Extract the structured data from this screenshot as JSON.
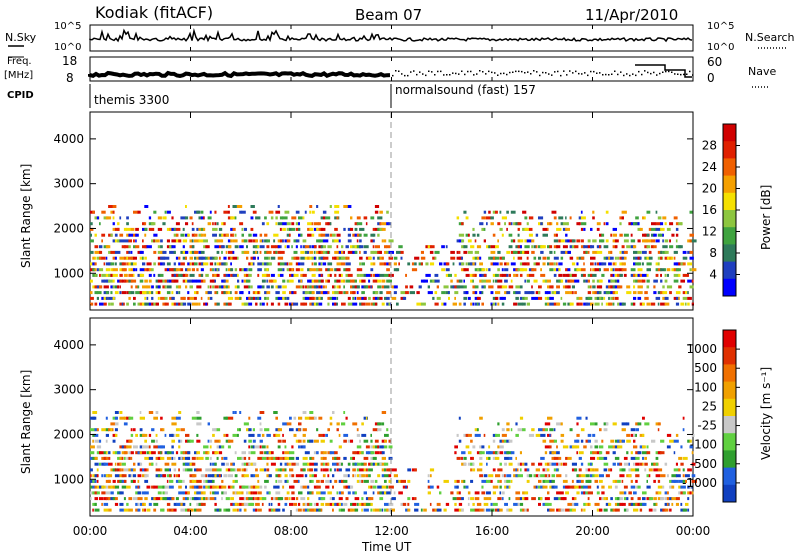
{
  "header": {
    "station": "Kodiak (fitACF)",
    "beam": "Beam 07",
    "date": "11/Apr/2010"
  },
  "top_panels": {
    "nsky_label": "N.Sky",
    "nsearch_label": "N.Search",
    "freq_label_1": "Freq.",
    "freq_label_2": "[MHz]",
    "nave_label": "Nave",
    "cpid_label": "CPID",
    "nsky_ticks": [
      "10^5",
      "10^0"
    ],
    "nsearch_ticks": [
      "10^5",
      "10^0"
    ],
    "freq_ticks": [
      "18",
      "8"
    ],
    "nave_ticks": [
      "60",
      "0"
    ],
    "cpid_segments": [
      {
        "name": "themis 3300",
        "start_hour": 0,
        "end_hour": 12
      },
      {
        "name": "normalsound (fast) 157",
        "start_hour": 12,
        "end_hour": 24
      }
    ]
  },
  "power_panel": {
    "colorbar_label": "Power [dB]",
    "colorbar_ticks": [
      "28",
      "24",
      "20",
      "16",
      "12",
      "8",
      "4"
    ],
    "colors": [
      "#0000ff",
      "#1f3fbf",
      "#2e7a5a",
      "#3fa33f",
      "#8dc63f",
      "#f5e000",
      "#f5a000",
      "#f06000",
      "#e02000",
      "#d00000"
    ]
  },
  "velocity_panel": {
    "colorbar_label": "Velocity [m s⁻¹]",
    "colorbar_ticks": [
      "1000",
      "500",
      "100",
      "25",
      "-25",
      "-100",
      "-500",
      "-1000"
    ],
    "colors": [
      "#1040c0",
      "#2060e0",
      "#2f9f2f",
      "#60d040",
      "#c8c8c8",
      "#f0d000",
      "#f0a000",
      "#f07000",
      "#e03000",
      "#e00000"
    ]
  },
  "chart_data": {
    "type": "heatmap",
    "x_axis": {
      "label": "Time UT",
      "ticks": [
        "00:00",
        "04:00",
        "08:00",
        "12:00",
        "16:00",
        "20:00",
        "00:00"
      ],
      "range_hours": [
        0,
        24
      ]
    },
    "y_axis": {
      "label": "Slant Range [km]",
      "ticks": [
        "1000",
        "2000",
        "3000",
        "4000"
      ],
      "range_km": [
        180,
        4600
      ]
    },
    "series": [
      {
        "name": "Power [dB]",
        "range": [
          0,
          30
        ]
      },
      {
        "name": "Velocity [m s⁻¹]",
        "range": [
          -1000,
          1000
        ]
      }
    ],
    "scatter_regions": [
      {
        "panel": "power",
        "start_hour": 0.0,
        "end_hour": 11.9,
        "min_km": 300,
        "max_km": 2500,
        "density": 0.55
      },
      {
        "panel": "power",
        "start_hour": 12.0,
        "end_hour": 14.5,
        "min_km": 300,
        "max_km": 1700,
        "density": 0.25
      },
      {
        "panel": "power",
        "start_hour": 14.5,
        "end_hour": 24.0,
        "min_km": 300,
        "max_km": 2400,
        "density": 0.45
      },
      {
        "panel": "velocity",
        "start_hour": 0.0,
        "end_hour": 11.9,
        "min_km": 300,
        "max_km": 2500,
        "density": 0.5
      },
      {
        "panel": "velocity",
        "start_hour": 12.0,
        "end_hour": 14.5,
        "min_km": 300,
        "max_km": 1200,
        "density": 0.2
      },
      {
        "panel": "velocity",
        "start_hour": 14.5,
        "end_hour": 24.0,
        "min_km": 300,
        "max_km": 2400,
        "density": 0.4
      }
    ],
    "separator_hour": 12
  }
}
